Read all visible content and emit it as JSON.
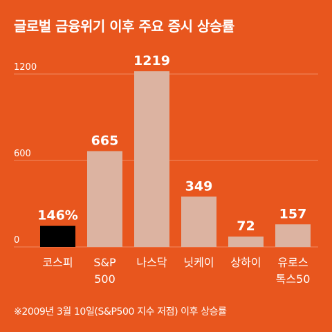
{
  "title": "글로벌 금융위기 이후 주요 증시 상승률",
  "footnote": "※2009년 3월 10일(S&P500 지수 저점) 이후 상승률",
  "chart_data": {
    "type": "bar",
    "categories": [
      [
        "코스피"
      ],
      [
        "S&P",
        "500"
      ],
      [
        "나스닥"
      ],
      [
        "닛케이"
      ],
      [
        "상하이"
      ],
      [
        "유로스",
        "톡스50"
      ]
    ],
    "values": [
      146,
      665,
      1219,
      349,
      72,
      157
    ],
    "data_labels": [
      "146%",
      "665",
      "1219",
      "349",
      "72",
      "157"
    ],
    "y_ticks": [
      0,
      600,
      1200
    ],
    "ylim": [
      0,
      1200
    ],
    "grid": true,
    "colors": {
      "background": "#e8561e",
      "highlight_bar": "#000000",
      "bar": "#dcb3a1",
      "grid": "#f08a62",
      "text": "#ffffff"
    },
    "highlight_index": 0
  }
}
